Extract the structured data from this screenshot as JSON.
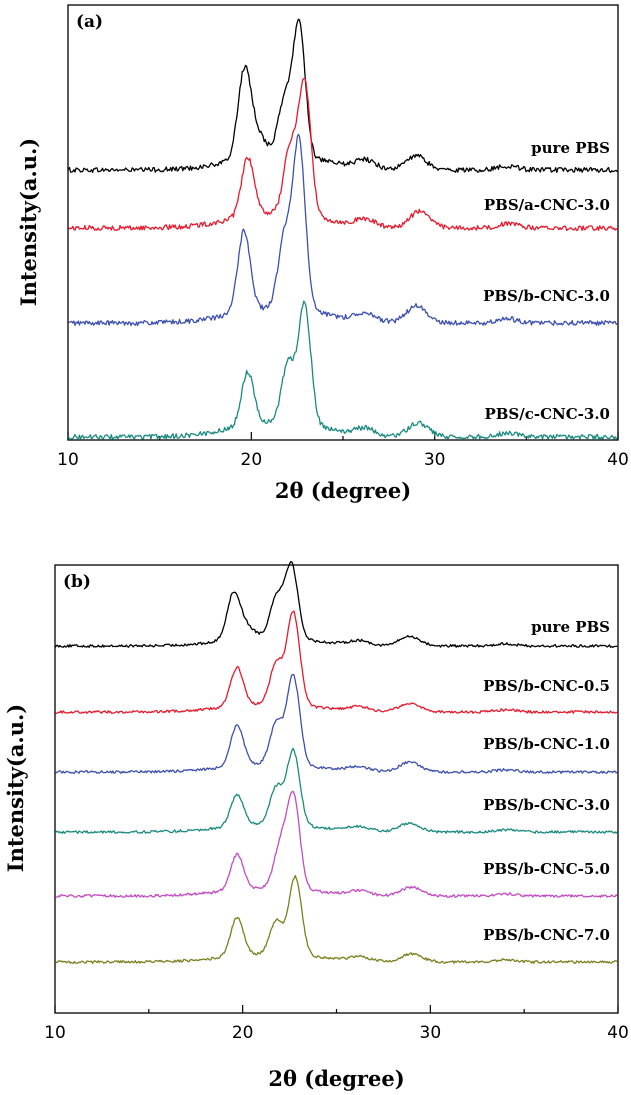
{
  "chart_data": [
    {
      "type": "line",
      "panel_label": "(a)",
      "xlabel": "2θ (degree)",
      "ylabel": "Intensity(a.u.)",
      "xlim": [
        10,
        40
      ],
      "x_ticks": [
        10,
        20,
        30,
        40
      ],
      "y_ticks_shown": false,
      "grid": false,
      "series": [
        {
          "name": "pure PBS",
          "color": "#000000",
          "peaks": [
            {
              "x": 19.6,
              "h": 0.52
            },
            {
              "x": 20.1,
              "h": 0.2
            },
            {
              "x": 21.8,
              "h": 0.38
            },
            {
              "x": 22.6,
              "h": 0.95
            },
            {
              "x": 26.2,
              "h": 0.06
            },
            {
              "x": 29.0,
              "h": 0.1
            },
            {
              "x": 34.0,
              "h": 0.03
            }
          ]
        },
        {
          "name": "PBS/a-CNC-3.0",
          "color": "#e8192c",
          "peaks": [
            {
              "x": 19.8,
              "h": 0.42
            },
            {
              "x": 22.1,
              "h": 0.45
            },
            {
              "x": 22.9,
              "h": 0.95
            },
            {
              "x": 26.2,
              "h": 0.05
            },
            {
              "x": 29.2,
              "h": 0.12
            },
            {
              "x": 34.0,
              "h": 0.03
            }
          ]
        },
        {
          "name": "PBS/b-CNC-3.0",
          "color": "#3d4fb0",
          "peaks": [
            {
              "x": 19.6,
              "h": 0.58
            },
            {
              "x": 21.8,
              "h": 0.5
            },
            {
              "x": 22.6,
              "h": 1.2
            },
            {
              "x": 26.2,
              "h": 0.06
            },
            {
              "x": 29.0,
              "h": 0.12
            },
            {
              "x": 34.0,
              "h": 0.03
            }
          ]
        },
        {
          "name": "PBS/c-CNC-3.0",
          "color": "#1a8a80",
          "peaks": [
            {
              "x": 19.8,
              "h": 0.38
            },
            {
              "x": 22.0,
              "h": 0.42
            },
            {
              "x": 22.9,
              "h": 0.85
            },
            {
              "x": 26.2,
              "h": 0.05
            },
            {
              "x": 29.1,
              "h": 0.1
            },
            {
              "x": 34.0,
              "h": 0.03
            }
          ]
        }
      ]
    },
    {
      "type": "line",
      "panel_label": "(b)",
      "xlabel": "2θ (degree)",
      "ylabel": "Intensity(a.u.)",
      "xlim": [
        10,
        40
      ],
      "x_ticks": [
        10,
        20,
        30,
        40
      ],
      "y_ticks_shown": false,
      "grid": false,
      "series": [
        {
          "name": "pure PBS",
          "color": "#000000",
          "peaks": [
            {
              "x": 19.5,
              "h": 0.52
            },
            {
              "x": 20.0,
              "h": 0.2
            },
            {
              "x": 21.8,
              "h": 0.55
            },
            {
              "x": 22.6,
              "h": 1.0
            },
            {
              "x": 26.2,
              "h": 0.06
            },
            {
              "x": 28.9,
              "h": 0.13
            },
            {
              "x": 34.0,
              "h": 0.03
            }
          ]
        },
        {
          "name": "PBS/b-CNC-0.5",
          "color": "#e8192c",
          "peaks": [
            {
              "x": 19.7,
              "h": 0.52
            },
            {
              "x": 21.8,
              "h": 0.55
            },
            {
              "x": 22.7,
              "h": 1.25
            },
            {
              "x": 26.2,
              "h": 0.06
            },
            {
              "x": 28.9,
              "h": 0.12
            },
            {
              "x": 34.0,
              "h": 0.03
            }
          ]
        },
        {
          "name": "PBS/b-CNC-1.0",
          "color": "#3d4fb0",
          "peaks": [
            {
              "x": 19.7,
              "h": 0.55
            },
            {
              "x": 21.8,
              "h": 0.55
            },
            {
              "x": 22.7,
              "h": 1.2
            },
            {
              "x": 26.2,
              "h": 0.06
            },
            {
              "x": 28.9,
              "h": 0.13
            },
            {
              "x": 34.0,
              "h": 0.03
            }
          ]
        },
        {
          "name": "PBS/b-CNC-3.0",
          "color": "#1a8a80",
          "peaks": [
            {
              "x": 19.7,
              "h": 0.42
            },
            {
              "x": 21.8,
              "h": 0.5
            },
            {
              "x": 22.7,
              "h": 1.0
            },
            {
              "x": 26.2,
              "h": 0.06
            },
            {
              "x": 28.9,
              "h": 0.12
            },
            {
              "x": 34.0,
              "h": 0.03
            }
          ]
        },
        {
          "name": "PBS/b-CNC-5.0",
          "color": "#c24bc2",
          "peaks": [
            {
              "x": 19.7,
              "h": 0.48
            },
            {
              "x": 22.0,
              "h": 0.55
            },
            {
              "x": 22.7,
              "h": 1.25
            },
            {
              "x": 26.2,
              "h": 0.06
            },
            {
              "x": 29.0,
              "h": 0.12
            },
            {
              "x": 34.0,
              "h": 0.03
            }
          ]
        },
        {
          "name": "PBS/b-CNC-7.0",
          "color": "#7c7f1f",
          "peaks": [
            {
              "x": 19.7,
              "h": 0.52
            },
            {
              "x": 21.8,
              "h": 0.45
            },
            {
              "x": 22.8,
              "h": 1.05
            },
            {
              "x": 26.2,
              "h": 0.06
            },
            {
              "x": 29.0,
              "h": 0.11
            },
            {
              "x": 34.0,
              "h": 0.03
            }
          ]
        }
      ]
    }
  ]
}
